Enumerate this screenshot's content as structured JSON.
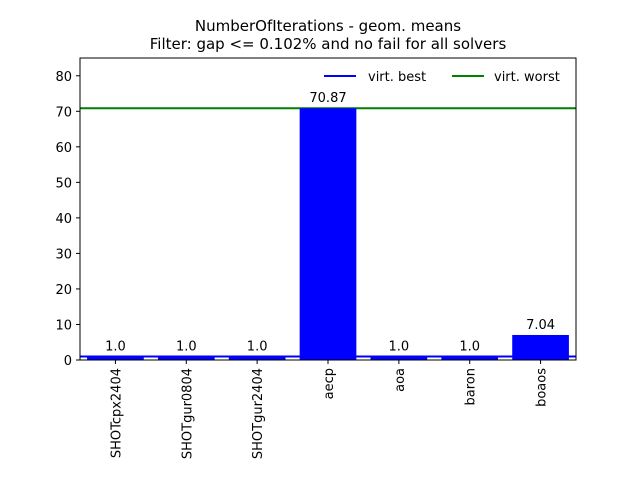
{
  "chart_data": {
    "type": "bar",
    "title": "NumberOfIterations - geom. means",
    "subtitle": "Filter: gap <= 0.102% and no fail for all solvers",
    "xlabel": "",
    "ylabel": "",
    "categories": [
      "SHOTcpx2404",
      "SHOTgur0804",
      "SHOTgur2404",
      "aecp",
      "aoa",
      "baron",
      "boaos"
    ],
    "values": [
      1.0,
      1.0,
      1.0,
      70.87,
      1.0,
      1.0,
      7.04
    ],
    "value_labels": [
      "1.0",
      "1.0",
      "1.0",
      "70.87",
      "1.0",
      "1.0",
      "7.04"
    ],
    "ylim": [
      0,
      85
    ],
    "yticks": [
      0,
      10,
      20,
      30,
      40,
      50,
      60,
      70,
      80
    ],
    "bar_color": "#0000ff",
    "grid": false,
    "legend": {
      "placement": "top-right",
      "entries": [
        {
          "name": "virt. best",
          "color": "#0000ff",
          "value": 1.0
        },
        {
          "name": "virt. worst",
          "color": "#008000",
          "value": 70.87
        }
      ]
    }
  }
}
